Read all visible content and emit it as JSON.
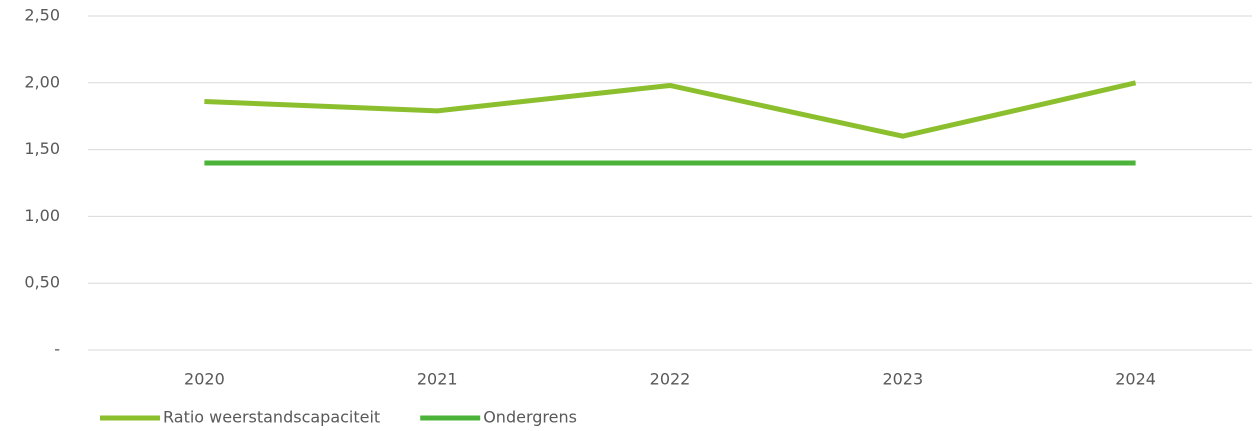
{
  "chart_data": {
    "type": "line",
    "categories": [
      "2020",
      "2021",
      "2022",
      "2023",
      "2024"
    ],
    "series": [
      {
        "name": "Ratio weerstandscapaciteit",
        "color": "#8cbf2e",
        "values": [
          1.86,
          1.79,
          1.98,
          1.6,
          2.0
        ]
      },
      {
        "name": "Ondergrens",
        "color": "#4cb33a",
        "values": [
          1.4,
          1.4,
          1.4,
          1.4,
          1.4
        ]
      }
    ],
    "ylim": [
      0,
      2.5
    ],
    "yticks": [
      {
        "value": 0,
        "label": "-"
      },
      {
        "value": 0.5,
        "label": "0,50"
      },
      {
        "value": 1,
        "label": "1,00"
      },
      {
        "value": 1.5,
        "label": "1,50"
      },
      {
        "value": 2,
        "label": "2,00"
      },
      {
        "value": 2.5,
        "label": "2,50"
      }
    ],
    "grid": true,
    "legend": "bottom-left"
  }
}
